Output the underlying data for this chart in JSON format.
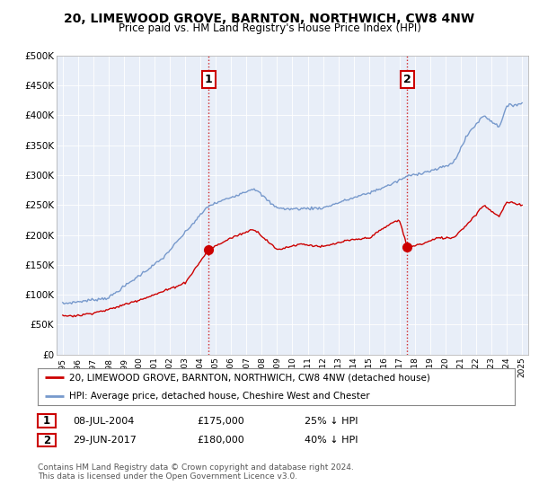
{
  "title": "20, LIMEWOOD GROVE, BARNTON, NORTHWICH, CW8 4NW",
  "subtitle": "Price paid vs. HM Land Registry's House Price Index (HPI)",
  "legend_line1": "20, LIMEWOOD GROVE, BARNTON, NORTHWICH, CW8 4NW (detached house)",
  "legend_line2": "HPI: Average price, detached house, Cheshire West and Chester",
  "footnote1": "Contains HM Land Registry data © Crown copyright and database right 2024.",
  "footnote2": "This data is licensed under the Open Government Licence v3.0.",
  "sale1_label": "1",
  "sale1_date": "08-JUL-2004",
  "sale1_price": "£175,000",
  "sale1_hpi": "25% ↓ HPI",
  "sale2_label": "2",
  "sale2_date": "29-JUN-2017",
  "sale2_price": "£180,000",
  "sale2_hpi": "40% ↓ HPI",
  "hpi_color": "#7799cc",
  "price_color": "#cc0000",
  "vline_color": "#cc0000",
  "chart_bg": "#e8eef8",
  "background_color": "#ffffff",
  "ylim": [
    0,
    500000
  ],
  "yticks": [
    0,
    50000,
    100000,
    150000,
    200000,
    250000,
    300000,
    350000,
    400000,
    450000,
    500000
  ],
  "sale1_year": 2004.52,
  "sale1_value": 175000,
  "sale2_year": 2017.49,
  "sale2_value": 180000,
  "xmin": 1995,
  "xmax": 2025
}
